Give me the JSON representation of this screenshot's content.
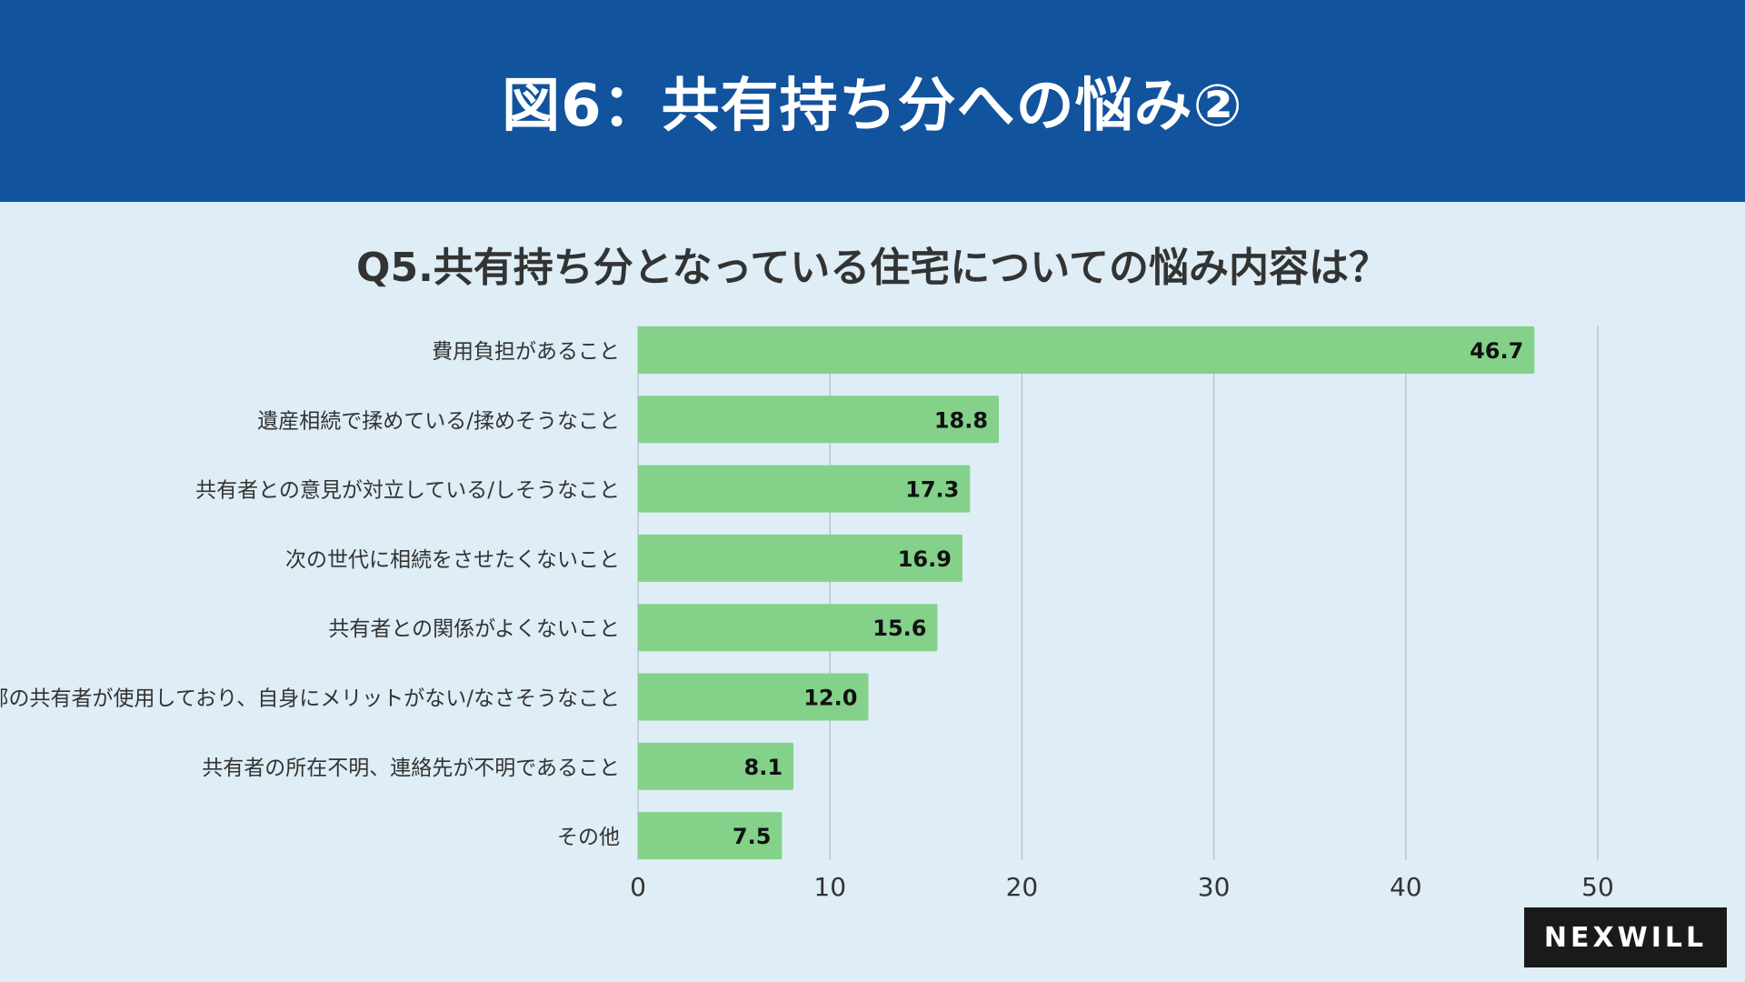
{
  "header": {
    "title": "図6：共有持ち分への悩み②"
  },
  "chart_data": {
    "type": "bar",
    "orientation": "horizontal",
    "title": "Q5.共有持ち分となっている住宅についての悩み内容は？",
    "categories": [
      "費用負担があること",
      "遺産相続で揉めている/揉めそうなこと",
      "共有者との意見が対立している/しそうなこと",
      "次の世代に相続をさせたくないこと",
      "共有者との関係がよくないこと",
      "一部の共有者が使用しており、自身にメリットがない/なさそうなこと",
      "共有者の所在不明、連絡先が不明であること",
      "その他"
    ],
    "values": [
      46.7,
      18.8,
      17.3,
      16.9,
      15.6,
      12.0,
      8.1,
      7.5
    ],
    "value_labels": [
      "46.7",
      "18.8",
      "17.3",
      "16.9",
      "15.6",
      "12.0",
      "8.1",
      "7.5"
    ],
    "xlim": [
      0,
      50
    ],
    "ticks": [
      0,
      10,
      20,
      30,
      40,
      50
    ],
    "tick_labels": [
      "0",
      "10",
      "20",
      "30",
      "40",
      "50"
    ],
    "grid": true,
    "bar_color": "#84d18a",
    "grid_color": "#b9c6d1"
  },
  "logo": {
    "text": "NEXWILL"
  },
  "colors": {
    "header_bg": "#11539d",
    "page_bg": "#deedf6",
    "text": "#333333"
  }
}
